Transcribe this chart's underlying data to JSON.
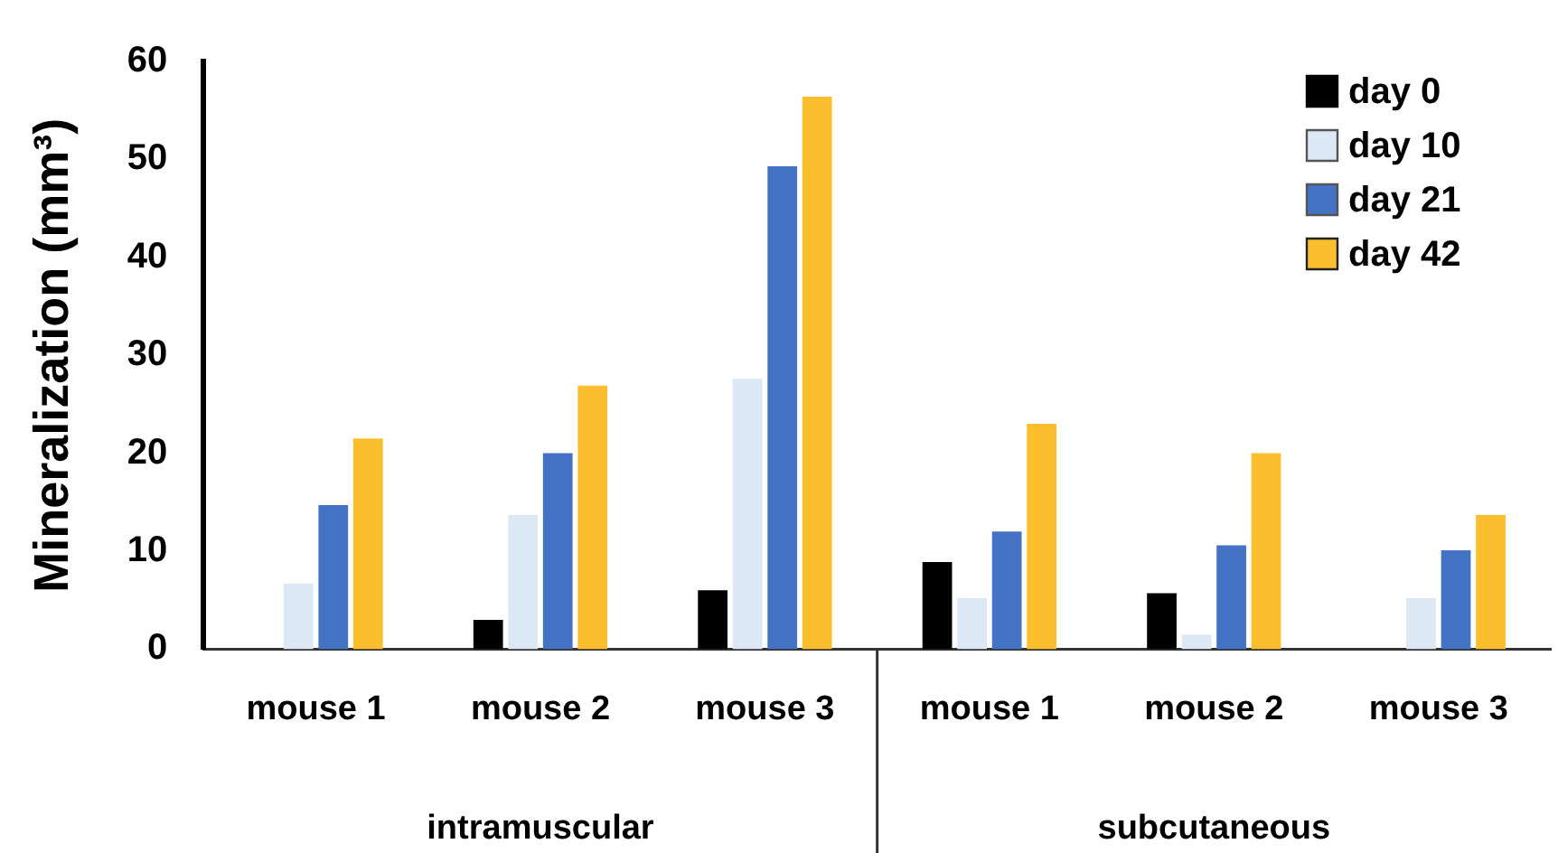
{
  "chart_data": {
    "type": "bar",
    "ylabel": "Mineralization (mm³)",
    "categories": [
      "mouse 1",
      "mouse 2",
      "mouse 3",
      "mouse 1",
      "mouse 2",
      "mouse 3"
    ],
    "series": [
      {
        "name": "day 0",
        "color": "#000000",
        "values": [
          0,
          3.0,
          6.0,
          8.9,
          5.7,
          0
        ]
      },
      {
        "name": "day 10",
        "color": "#dde8f5",
        "values": [
          6.7,
          13.7,
          27.6,
          5.2,
          1.5,
          5.2
        ]
      },
      {
        "name": "day 21",
        "color": "#4472c4",
        "values": [
          14.7,
          20.0,
          49.3,
          12.0,
          10.6,
          10.1
        ]
      },
      {
        "name": "day 42",
        "color": "#fbbf2d",
        "values": [
          21.5,
          26.9,
          56.4,
          23.0,
          20.0,
          13.7
        ]
      }
    ],
    "ylim": [
      0,
      60
    ],
    "yticks": [
      0,
      10,
      20,
      30,
      40,
      50,
      60
    ],
    "grid": false,
    "legend": "top right",
    "annotations": [
      "intramuscular",
      "subcutaneous"
    ]
  }
}
